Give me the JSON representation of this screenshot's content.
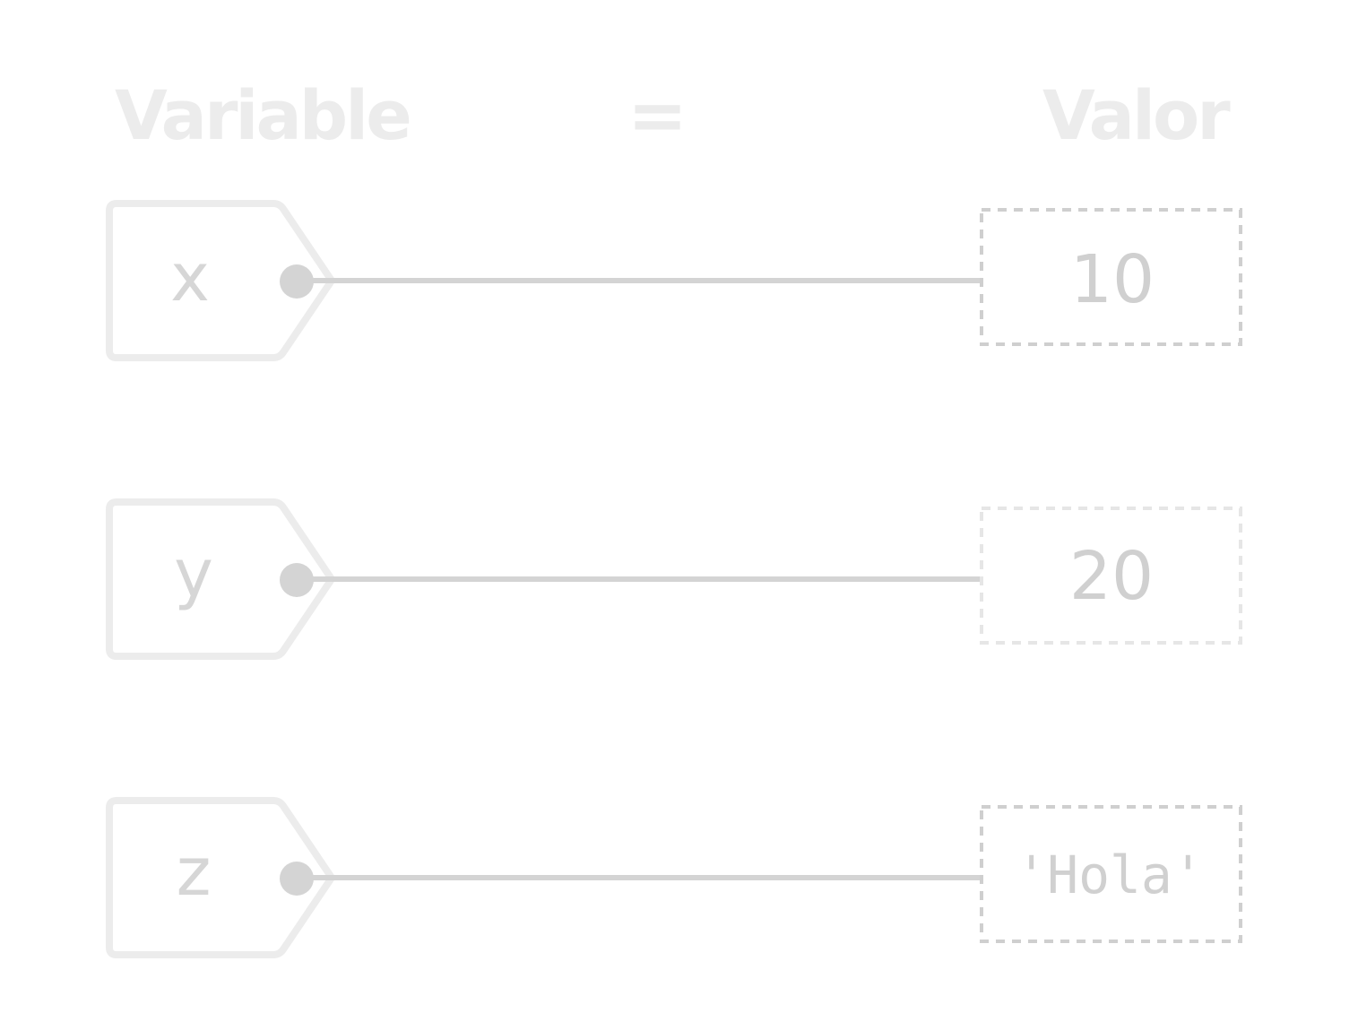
{
  "header": {
    "variable_label": "Variable",
    "equals_label": "=",
    "value_label": "Valor"
  },
  "rows": [
    {
      "variable": "x",
      "value": "10"
    },
    {
      "variable": "y",
      "value": "20"
    },
    {
      "variable": "z",
      "value": "'Hola'"
    }
  ],
  "colors": {
    "header": "#ececec",
    "tag_border": "#ececec",
    "connector": "#d4d4d4",
    "value_border": "#cfcfcf",
    "text": "#d0d0d0"
  }
}
